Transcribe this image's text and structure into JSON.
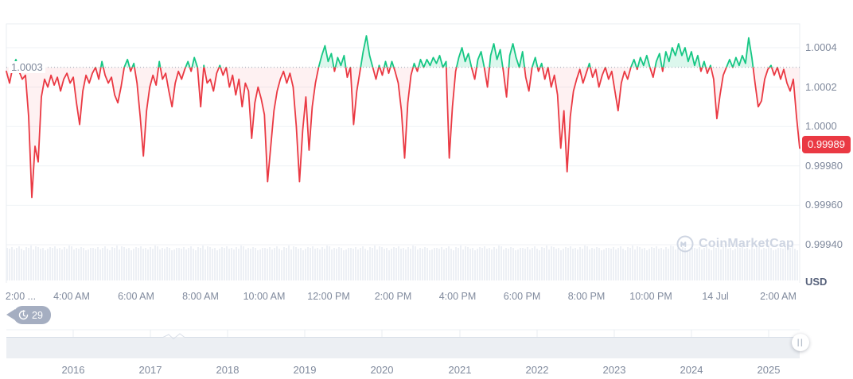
{
  "chart": {
    "reference_price_label": "1.0003",
    "current_price": "0.99989",
    "unit_label": "USD",
    "watermark_text": "CoinMarketCap",
    "history_count": "29",
    "handle_glyph": "||"
  },
  "colors": {
    "up": "#16c784",
    "down": "#ea3943",
    "up_fill": "rgba(22,199,132,0.15)",
    "down_fill": "rgba(234,57,66,0.07)",
    "grid": "#eff2f6",
    "frame": "#e8ecf1",
    "dotted": "#98a1b3",
    "axis_text": "#808a9d",
    "volume_bar": "#edf0f5",
    "navigator_band": "#eceff3",
    "navigator_line": "#d8dee8",
    "navigator_tick": "#eef1f5"
  },
  "chart_data": {
    "type": "line",
    "ylabel": "USD",
    "reference_line": 1.0003,
    "last_price": 0.99989,
    "ylim": [
      0.9994,
      1.00052
    ],
    "grid": true,
    "y_ticks": [
      "1.0004",
      "1.0002",
      "1.0000",
      "0.99980",
      "0.99960",
      "0.99940"
    ],
    "x_ticks": [
      "2:00 ...",
      "4:00 AM",
      "6:00 AM",
      "8:00 AM",
      "10:00 AM",
      "12:00 PM",
      "2:00 PM",
      "4:00 PM",
      "6:00 PM",
      "8:00 PM",
      "10:00 PM",
      "14 Jul",
      "2:00 AM"
    ],
    "navigator_years": [
      "2016",
      "2017",
      "2018",
      "2019",
      "2020",
      "2021",
      "2022",
      "2023",
      "2024",
      "2025"
    ],
    "series": [
      {
        "name": "price",
        "values": [
          1.00028,
          1.00022,
          1.0003,
          1.00034,
          1.00028,
          1.00024,
          1.00026,
          1.00005,
          0.99964,
          0.9999,
          0.99982,
          1.00015,
          1.00024,
          1.0002,
          1.00026,
          1.00021,
          1.00025,
          1.00018,
          1.00024,
          1.00027,
          1.00022,
          1.00025,
          1.00012,
          1.00001,
          1.00018,
          1.00026,
          1.00022,
          1.00027,
          1.0003,
          1.00024,
          1.00033,
          1.00026,
          1.00022,
          1.00025,
          1.00016,
          1.00012,
          1.0002,
          1.0003,
          1.00034,
          1.00028,
          1.00032,
          1.00022,
          1.00005,
          0.99985,
          1.00008,
          1.0002,
          1.00026,
          1.00021,
          1.00033,
          1.00024,
          1.00027,
          1.00018,
          1.0001,
          1.00022,
          1.00028,
          1.00024,
          1.00029,
          1.00033,
          1.00028,
          1.00035,
          1.0003,
          1.0001,
          1.00031,
          1.00022,
          1.00024,
          1.00018,
          1.00027,
          1.00031,
          1.00026,
          1.0003,
          1.0002,
          1.00026,
          1.00016,
          1.00024,
          1.0001,
          1.00022,
          1.00018,
          0.99994,
          1.00012,
          1.0002,
          1.00014,
          1.00006,
          0.99972,
          0.9999,
          1.00008,
          1.00018,
          1.00024,
          1.00028,
          1.00022,
          1.00027,
          1.0002,
          1.0,
          0.99972,
          0.99998,
          1.00015,
          0.99988,
          1.0001,
          1.00022,
          1.0003,
          1.00036,
          1.00041,
          1.00033,
          1.00037,
          1.00028,
          1.00035,
          1.00031,
          1.00036,
          1.00025,
          1.0003,
          1.00001,
          1.00018,
          1.00028,
          1.00038,
          1.00046,
          1.00036,
          1.0003,
          1.00024,
          1.00031,
          1.00026,
          1.00033,
          1.00027,
          1.00033,
          1.00028,
          1.00022,
          1.00008,
          0.99984,
          1.00012,
          1.00026,
          1.00032,
          1.00028,
          1.00034,
          1.0003,
          1.00034,
          1.00031,
          1.00035,
          1.00032,
          1.00036,
          1.0003,
          1.00033,
          0.99984,
          1.0001,
          1.00028,
          1.00035,
          1.0004,
          1.00033,
          1.00037,
          1.0003,
          1.00024,
          1.00034,
          1.00038,
          1.0003,
          1.0002,
          1.00036,
          1.00042,
          1.00034,
          1.00039,
          1.00028,
          1.00015,
          1.00036,
          1.00042,
          1.00035,
          1.0003,
          1.00038,
          1.00025,
          1.00018,
          1.0003,
          1.00035,
          1.00028,
          1.00032,
          1.00024,
          1.0003,
          1.0002,
          1.00026,
          1.00016,
          0.99989,
          1.00008,
          0.99977,
          1.00005,
          1.00018,
          1.00024,
          1.00029,
          1.00022,
          1.00027,
          1.00032,
          1.00025,
          1.00029,
          1.0002,
          1.00026,
          1.0003,
          1.00024,
          1.00028,
          1.00018,
          1.00008,
          1.00022,
          1.00028,
          1.00024,
          1.0003,
          1.00034,
          1.00029,
          1.00035,
          1.00031,
          1.00036,
          1.0003,
          1.00025,
          1.00033,
          1.00037,
          1.00028,
          1.00038,
          1.00033,
          1.0004,
          1.00036,
          1.00042,
          1.00036,
          1.0004,
          1.00033,
          1.00038,
          1.00031,
          1.00036,
          1.00028,
          1.00033,
          1.00027,
          1.00031,
          1.00024,
          1.00004,
          1.00016,
          1.00026,
          1.0003,
          1.00034,
          1.0003,
          1.00035,
          1.00031,
          1.00036,
          1.00032,
          1.00045,
          1.00035,
          1.00022,
          1.0001,
          1.00013,
          1.00024,
          1.00029,
          1.00031,
          1.00026,
          1.0003,
          1.00024,
          1.00029,
          1.00022,
          1.00018,
          1.00024,
          1.00005,
          0.99989
        ]
      }
    ],
    "volume_profile": [
      41,
      40,
      42,
      39,
      41,
      43,
      40,
      38,
      42,
      41,
      44,
      39,
      43,
      42,
      40,
      41,
      38,
      40,
      42,
      41,
      43,
      40,
      41,
      39,
      42,
      40,
      44,
      43,
      39,
      41,
      40,
      42,
      41,
      38,
      39,
      41
    ]
  }
}
